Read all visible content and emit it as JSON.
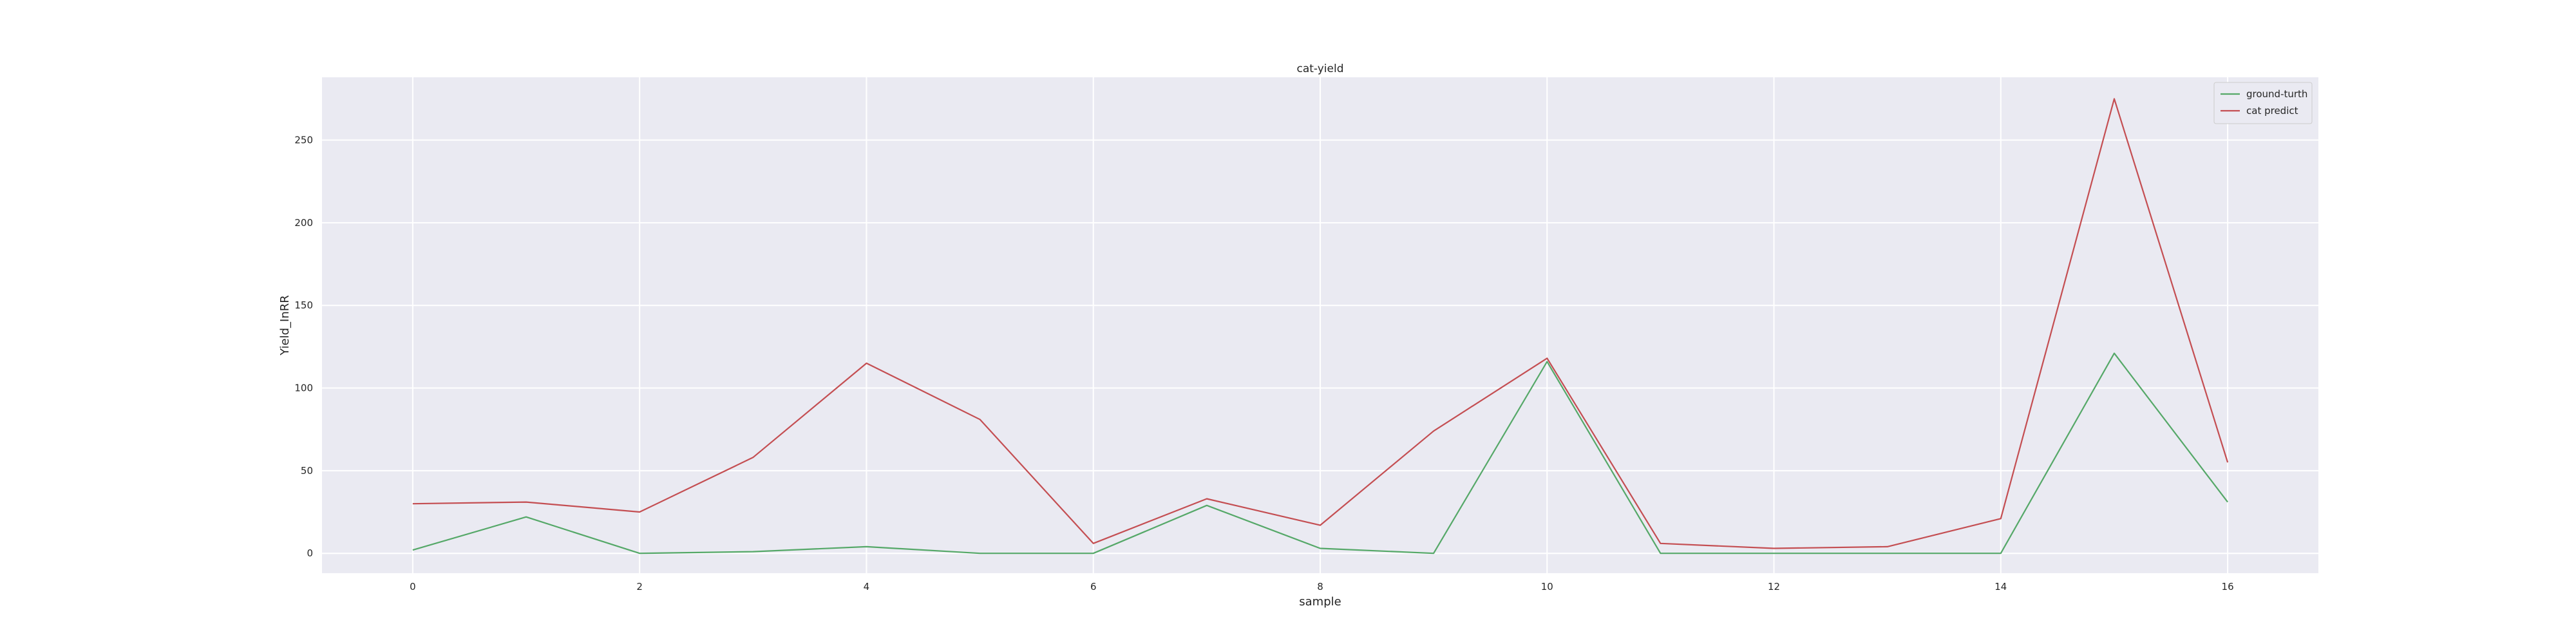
{
  "chart_data": {
    "type": "line",
    "title": "cat-yield",
    "xlabel": "sample",
    "ylabel": "Yield_InRR",
    "x": [
      0,
      1,
      2,
      3,
      4,
      5,
      6,
      7,
      8,
      9,
      10,
      11,
      12,
      13,
      14,
      15,
      16
    ],
    "xlim": [
      -0.8,
      16.8
    ],
    "ylim": [
      -12,
      288
    ],
    "xticks": [
      0,
      2,
      4,
      6,
      8,
      10,
      12,
      14,
      16
    ],
    "yticks": [
      0,
      50,
      100,
      150,
      200,
      250
    ],
    "grid": true,
    "legend_position": "top-right",
    "background": "#eaeaf2",
    "series": [
      {
        "name": "ground-turth",
        "color": "#55a868",
        "values": [
          2,
          22,
          0,
          1,
          4,
          0,
          0,
          29,
          3,
          0,
          116,
          0,
          0,
          0,
          0,
          121,
          31
        ]
      },
      {
        "name": "cat predict",
        "color": "#c44e52",
        "values": [
          30,
          31,
          25,
          58,
          115,
          81,
          6,
          33,
          17,
          74,
          118,
          6,
          3,
          4,
          21,
          275,
          55
        ]
      }
    ]
  }
}
